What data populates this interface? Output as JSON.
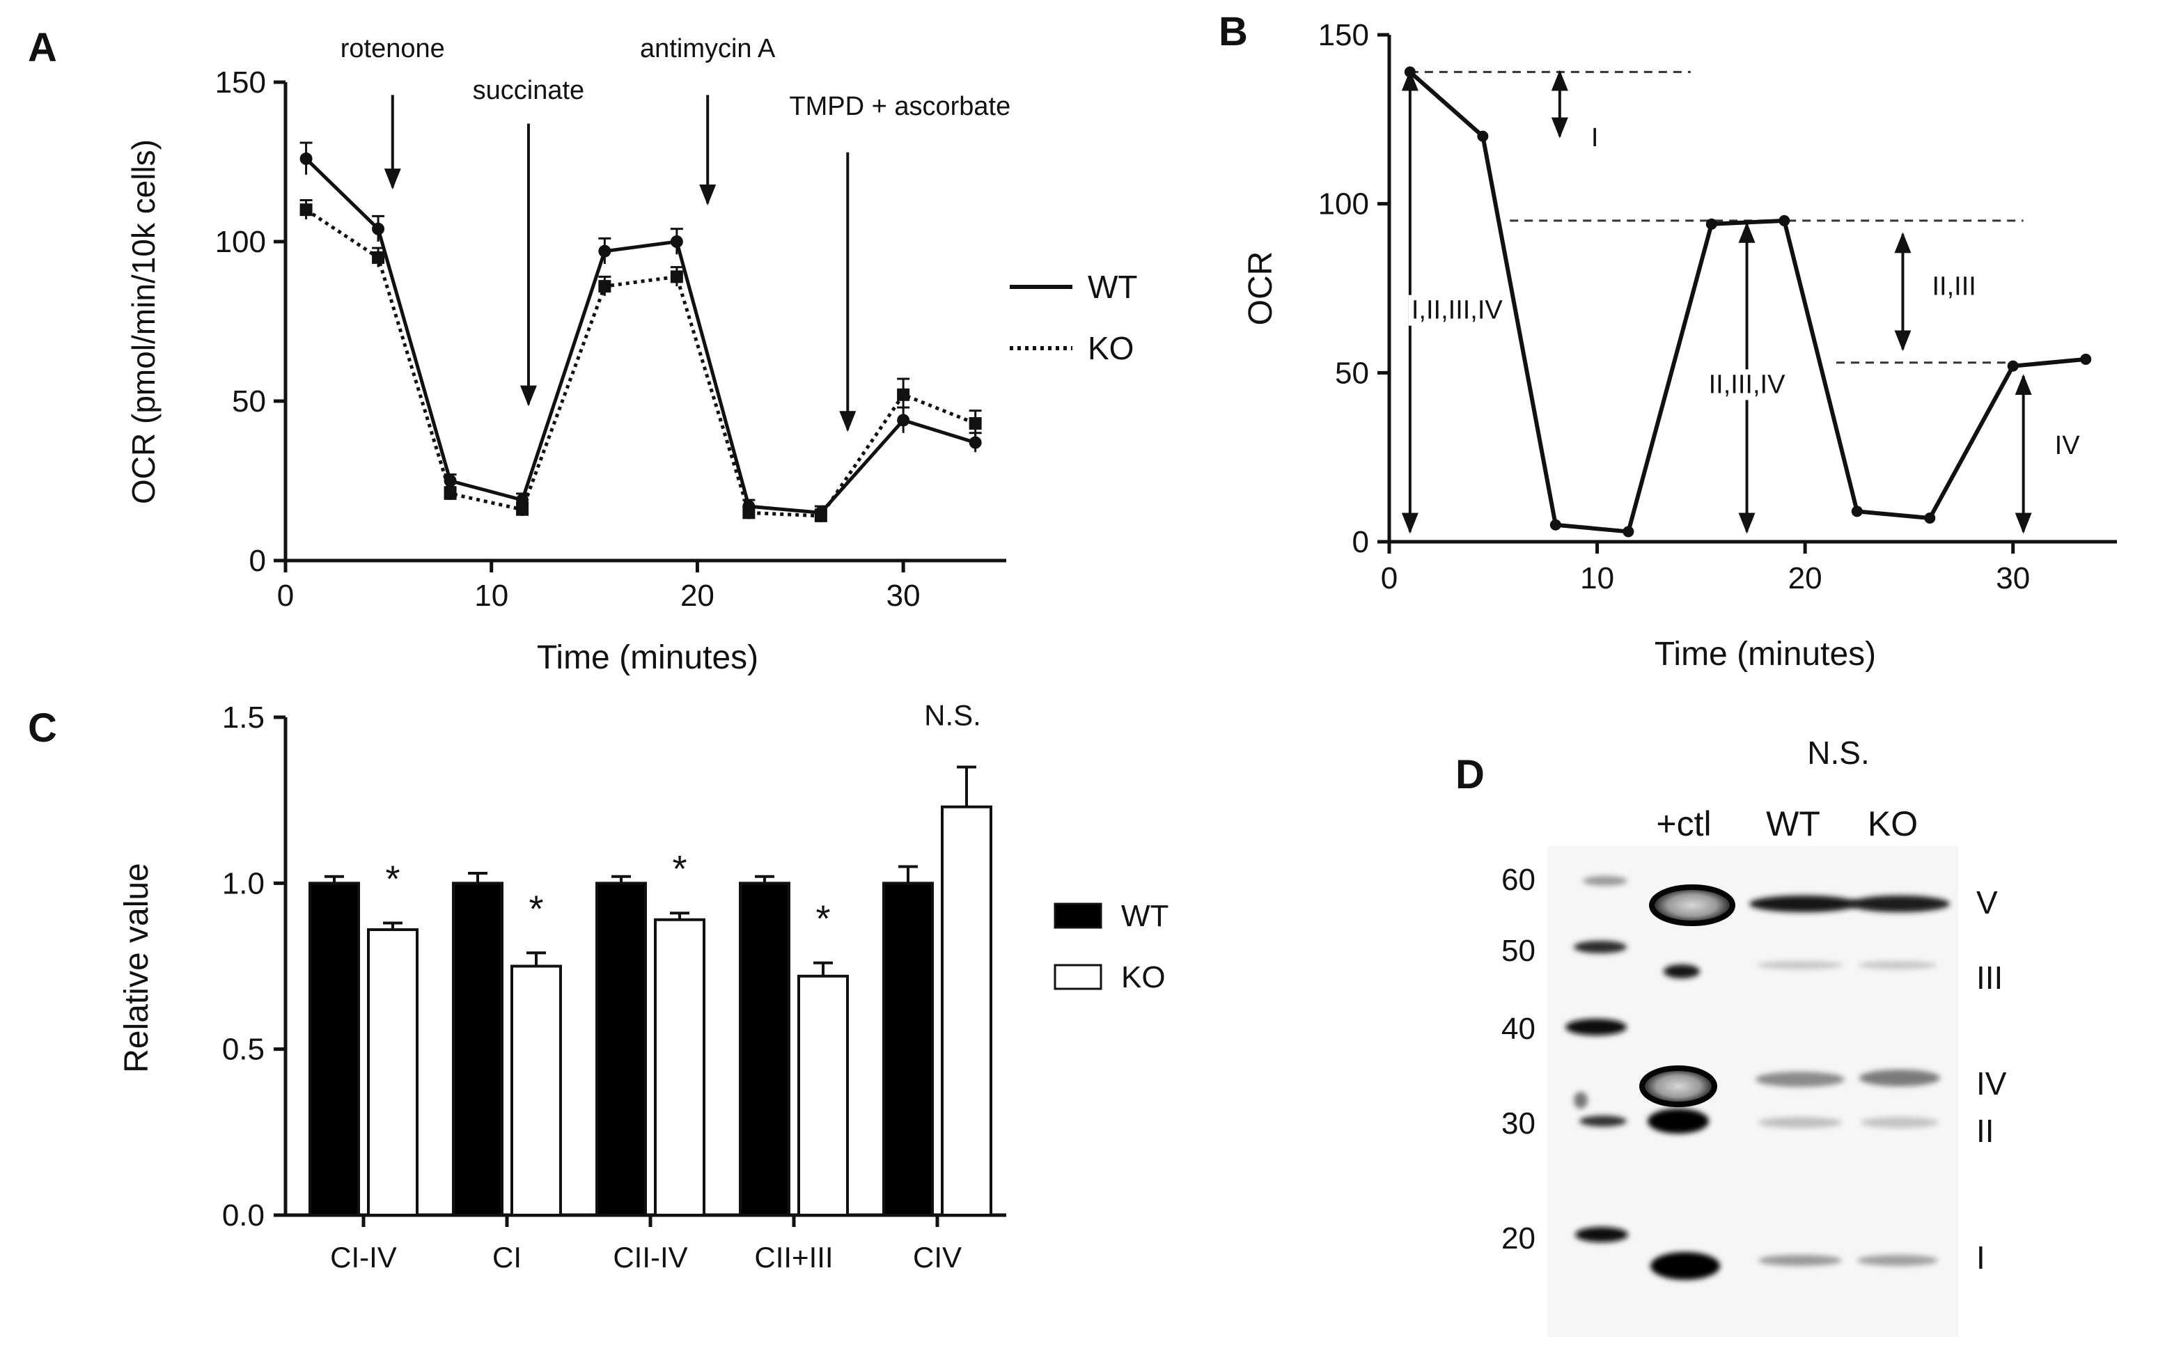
{
  "figure": {
    "panel_labels": [
      "A",
      "B",
      "C",
      "D"
    ]
  },
  "chart_data": [
    {
      "panel": "A",
      "type": "line",
      "xlabel": "Time (minutes)",
      "ylabel": "OCR (pmol/min/10k cells)",
      "xlim": [
        0,
        35
      ],
      "ylim": [
        0,
        150
      ],
      "xticks": [
        0,
        10,
        20,
        30
      ],
      "yticks": [
        0,
        50,
        100,
        150
      ],
      "x": [
        1,
        4.5,
        8,
        11.5,
        15.5,
        19,
        22.5,
        26,
        30,
        33.5
      ],
      "series": [
        {
          "name": "WT",
          "style": "solid",
          "values": [
            126,
            104,
            25,
            19,
            97,
            100,
            17,
            15,
            44,
            37
          ],
          "errors": [
            5,
            4,
            2,
            2,
            4,
            4,
            2,
            2,
            4,
            3
          ]
        },
        {
          "name": "KO",
          "style": "dotted",
          "values": [
            110,
            95,
            21,
            16,
            86,
            89,
            15,
            14,
            52,
            43
          ],
          "errors": [
            3,
            3,
            2,
            2,
            3,
            3,
            2,
            2,
            5,
            4
          ]
        }
      ],
      "annotations": [
        {
          "label": "rotenone",
          "x": 5.2,
          "y_top": 146,
          "y_arrow": 117
        },
        {
          "label": "succinate",
          "x": 11.8,
          "y_top": 137,
          "y_arrow": 49
        },
        {
          "label": "antimycin A",
          "x": 20.5,
          "y_top": 146,
          "y_arrow": 112
        },
        {
          "label": "TMPD + ascorbate",
          "x": 27.3,
          "y_top": 128,
          "y_arrow": 41
        }
      ],
      "legend": [
        {
          "name": "WT",
          "style": "solid"
        },
        {
          "name": "KO",
          "style": "dotted"
        }
      ]
    },
    {
      "panel": "B",
      "type": "line",
      "xlabel": "Time (minutes)",
      "ylabel": "OCR",
      "xlim": [
        0,
        35
      ],
      "ylim": [
        0,
        150
      ],
      "xticks": [
        0,
        10,
        20,
        30
      ],
      "yticks": [
        0,
        50,
        100,
        150
      ],
      "x": [
        1,
        4.5,
        8,
        11.5,
        15.5,
        19,
        22.5,
        26,
        30,
        33.5
      ],
      "values": [
        139,
        120,
        5,
        3,
        94,
        95,
        9,
        7,
        52,
        54
      ],
      "reference_lines": [
        {
          "y": 139,
          "x_from": 1,
          "x_to": 14.5
        },
        {
          "y": 95,
          "x_from": 5.8,
          "x_to": 30.5
        },
        {
          "y": 53,
          "x_from": 21.5,
          "x_to": 29.8
        }
      ],
      "brackets": [
        {
          "label": "I",
          "x": 8.2,
          "y_from": 139,
          "y_to": 120
        },
        {
          "label": "I,II,III,IV",
          "x": 1,
          "y_from": 139,
          "y_to": 3
        },
        {
          "label": "II,III,IV",
          "x": 17.2,
          "y_from": 94,
          "y_to": 3
        },
        {
          "label": "II,III",
          "x": 24.7,
          "y_from": 91,
          "y_to": 57
        },
        {
          "label": "IV",
          "x": 30.5,
          "y_from": 49,
          "y_to": 3
        }
      ]
    },
    {
      "panel": "C",
      "type": "bar",
      "ylabel": "Relative value",
      "ylim": [
        0,
        1.5
      ],
      "yticks": [
        "0.0",
        "0.5",
        "1.0",
        "1.5"
      ],
      "categories": [
        "CI-IV",
        "CI",
        "CII-IV",
        "CII+III",
        "CIV"
      ],
      "series": [
        {
          "name": "WT",
          "fill": "black",
          "values": [
            1.0,
            1.0,
            1.0,
            1.0,
            1.0
          ],
          "errors": [
            0.02,
            0.03,
            0.02,
            0.02,
            0.05
          ]
        },
        {
          "name": "KO",
          "fill": "white",
          "values": [
            0.86,
            0.75,
            0.89,
            0.72,
            1.23
          ],
          "errors": [
            0.02,
            0.04,
            0.02,
            0.04,
            0.12
          ]
        }
      ],
      "significance": [
        "*",
        "*",
        "*",
        "*",
        "N.S."
      ],
      "legend": [
        {
          "name": "WT",
          "fill": "black"
        },
        {
          "name": "KO",
          "fill": "white"
        }
      ]
    }
  ],
  "blot": {
    "panel": "D",
    "significance": "N.S.",
    "lane_labels": [
      "+ctl",
      "WT",
      "KO"
    ],
    "marker_labels": [
      "60",
      "50",
      "40",
      "30",
      "20"
    ],
    "complex_labels": [
      "V",
      "III",
      "IV",
      "II",
      "I"
    ]
  }
}
